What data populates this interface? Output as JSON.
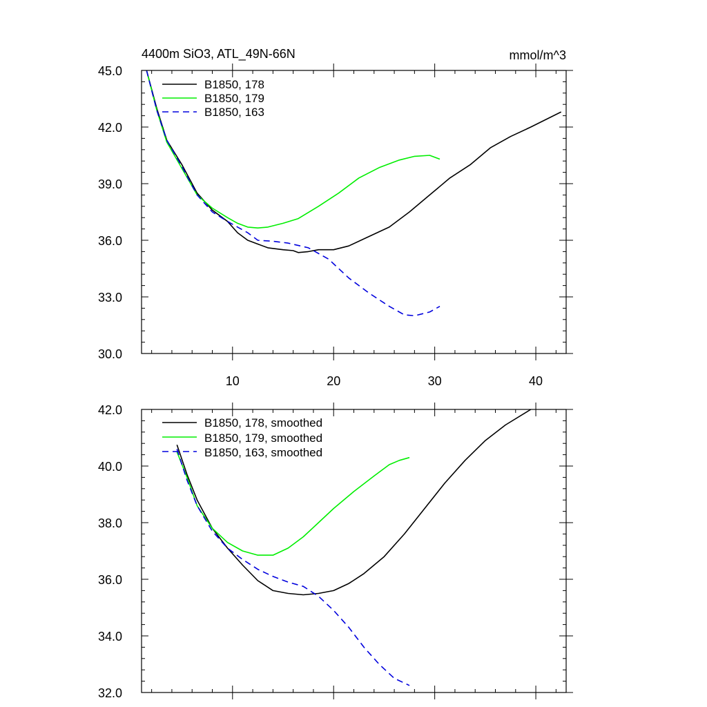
{
  "chart_data": [
    {
      "type": "line",
      "title": "4400m SiO3, ATL_49N-66N",
      "units": "mmol/m^3",
      "xlabel": "",
      "ylabel": "",
      "xlim": [
        1,
        43
      ],
      "ylim": [
        30,
        45
      ],
      "x_ticks": [
        "10",
        "20",
        "30",
        "40"
      ],
      "y_ticks": [
        "30.0",
        "33.0",
        "36.0",
        "39.0",
        "42.0",
        "45.0"
      ],
      "legend_position": "top-left",
      "series": [
        {
          "name": "B1850, 178",
          "color": "#000000",
          "dash": "solid",
          "points": [
            [
              1.5,
              45.0
            ],
            [
              2.5,
              43.0
            ],
            [
              3.5,
              41.3
            ],
            [
              5,
              40.0
            ],
            [
              6.5,
              38.5
            ],
            [
              8,
              37.6
            ],
            [
              9.5,
              37.0
            ],
            [
              10.5,
              36.4
            ],
            [
              11.5,
              36.0
            ],
            [
              12.5,
              35.8
            ],
            [
              13.5,
              35.6
            ],
            [
              15,
              35.5
            ],
            [
              16,
              35.45
            ],
            [
              16.5,
              35.35
            ],
            [
              17.5,
              35.4
            ],
            [
              18.5,
              35.5
            ],
            [
              20,
              35.5
            ],
            [
              21.5,
              35.7
            ],
            [
              23.5,
              36.2
            ],
            [
              25.5,
              36.7
            ],
            [
              27.5,
              37.5
            ],
            [
              29.5,
              38.4
            ],
            [
              31.5,
              39.3
            ],
            [
              33.5,
              40.0
            ],
            [
              35.5,
              40.9
            ],
            [
              37.5,
              41.5
            ],
            [
              39.5,
              42.0
            ],
            [
              42.5,
              42.8
            ]
          ]
        },
        {
          "name": "B1850, 179",
          "color": "#00ee00",
          "dash": "solid",
          "points": [
            [
              1.5,
              45.0
            ],
            [
              2.5,
              42.9
            ],
            [
              3.5,
              41.2
            ],
            [
              5,
              39.8
            ],
            [
              6.5,
              38.4
            ],
            [
              8,
              37.7
            ],
            [
              9.5,
              37.2
            ],
            [
              10.5,
              36.9
            ],
            [
              11.5,
              36.7
            ],
            [
              12.5,
              36.65
            ],
            [
              13.5,
              36.7
            ],
            [
              15,
              36.9
            ],
            [
              16.5,
              37.15
            ],
            [
              18.5,
              37.8
            ],
            [
              20.5,
              38.5
            ],
            [
              22.5,
              39.3
            ],
            [
              24.5,
              39.85
            ],
            [
              26.5,
              40.25
            ],
            [
              28,
              40.45
            ],
            [
              29.5,
              40.5
            ],
            [
              30.5,
              40.3
            ]
          ]
        },
        {
          "name": "B1850, 163",
          "color": "#0000dd",
          "dash": "dashed",
          "points": [
            [
              1.5,
              45.0
            ],
            [
              2.5,
              42.9
            ],
            [
              3.5,
              41.3
            ],
            [
              5,
              39.9
            ],
            [
              6.5,
              38.4
            ],
            [
              8,
              37.5
            ],
            [
              9.5,
              37.0
            ],
            [
              10.5,
              36.7
            ],
            [
              11.5,
              36.4
            ],
            [
              12.5,
              36.0
            ],
            [
              14,
              35.95
            ],
            [
              15.5,
              35.85
            ],
            [
              17.5,
              35.6
            ],
            [
              19.5,
              35.0
            ],
            [
              21.5,
              34.0
            ],
            [
              23.5,
              33.2
            ],
            [
              25.5,
              32.5
            ],
            [
              27,
              32.05
            ],
            [
              28,
              32.0
            ],
            [
              29.5,
              32.2
            ],
            [
              30.5,
              32.5
            ]
          ]
        }
      ]
    },
    {
      "type": "line",
      "title": "",
      "xlabel": "",
      "ylabel": "",
      "xlim": [
        1,
        43
      ],
      "ylim": [
        32,
        42
      ],
      "y_ticks": [
        "32.0",
        "34.0",
        "36.0",
        "38.0",
        "40.0",
        "42.0"
      ],
      "legend_position": "top-left",
      "series": [
        {
          "name": "B1850, 178, smoothed",
          "color": "#000000",
          "dash": "solid",
          "points": [
            [
              4.5,
              40.75
            ],
            [
              5.5,
              39.7
            ],
            [
              6.5,
              38.8
            ],
            [
              8,
              37.8
            ],
            [
              9.5,
              37.1
            ],
            [
              11,
              36.5
            ],
            [
              12.5,
              35.95
            ],
            [
              14,
              35.6
            ],
            [
              15.5,
              35.5
            ],
            [
              17,
              35.45
            ],
            [
              18.5,
              35.5
            ],
            [
              20,
              35.6
            ],
            [
              21.5,
              35.85
            ],
            [
              23,
              36.2
            ],
            [
              25,
              36.8
            ],
            [
              27,
              37.6
            ],
            [
              29,
              38.5
            ],
            [
              31,
              39.4
            ],
            [
              33,
              40.2
            ],
            [
              35,
              40.9
            ],
            [
              37,
              41.45
            ],
            [
              39.5,
              42.0
            ]
          ]
        },
        {
          "name": "B1850, 179, smoothed",
          "color": "#00ee00",
          "dash": "solid",
          "points": [
            [
              4.5,
              40.5
            ],
            [
              5.5,
              39.6
            ],
            [
              6.5,
              38.6
            ],
            [
              8,
              37.8
            ],
            [
              9.5,
              37.3
            ],
            [
              11,
              37.0
            ],
            [
              12.5,
              36.85
            ],
            [
              14,
              36.85
            ],
            [
              15.5,
              37.1
            ],
            [
              17,
              37.5
            ],
            [
              18.5,
              38.0
            ],
            [
              20,
              38.5
            ],
            [
              22,
              39.1
            ],
            [
              24,
              39.65
            ],
            [
              25.5,
              40.05
            ],
            [
              26.5,
              40.2
            ],
            [
              27.5,
              40.3
            ]
          ]
        },
        {
          "name": "B1850, 163, smoothed",
          "color": "#0000dd",
          "dash": "dashed",
          "points": [
            [
              4.5,
              40.6
            ],
            [
              5.5,
              39.5
            ],
            [
              6.5,
              38.6
            ],
            [
              8,
              37.7
            ],
            [
              9.5,
              37.1
            ],
            [
              11,
              36.7
            ],
            [
              12.5,
              36.35
            ],
            [
              14,
              36.1
            ],
            [
              15.5,
              35.9
            ],
            [
              17,
              35.75
            ],
            [
              18.5,
              35.4
            ],
            [
              20,
              34.9
            ],
            [
              21.5,
              34.3
            ],
            [
              23,
              33.6
            ],
            [
              24.5,
              33.0
            ],
            [
              26,
              32.5
            ],
            [
              27.5,
              32.25
            ]
          ]
        }
      ]
    }
  ]
}
